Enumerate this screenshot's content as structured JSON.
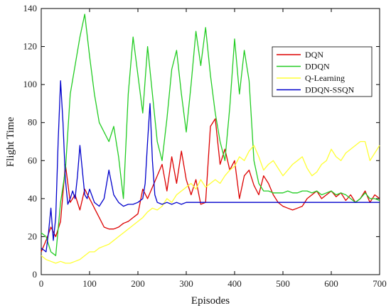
{
  "chart_data": {
    "type": "line",
    "title": "",
    "xlabel": "Episodes",
    "ylabel": "Flight Time",
    "xlim": [
      0,
      700
    ],
    "ylim": [
      0,
      140
    ],
    "xticks": [
      0,
      100,
      200,
      300,
      400,
      500,
      600,
      700
    ],
    "yticks": [
      0,
      20,
      40,
      60,
      80,
      100,
      120,
      140
    ],
    "grid": false,
    "legend_position": "top-right",
    "series": [
      {
        "name": "DQN",
        "color": "#dd0000",
        "x": [
          0,
          10,
          20,
          30,
          40,
          50,
          60,
          70,
          80,
          90,
          100,
          110,
          120,
          130,
          140,
          150,
          160,
          170,
          180,
          190,
          200,
          210,
          220,
          230,
          240,
          250,
          260,
          270,
          280,
          290,
          300,
          310,
          320,
          330,
          340,
          350,
          360,
          370,
          380,
          390,
          400,
          410,
          420,
          430,
          440,
          450,
          460,
          470,
          480,
          490,
          500,
          510,
          520,
          530,
          540,
          550,
          560,
          570,
          580,
          590,
          600,
          610,
          620,
          630,
          640,
          650,
          660,
          670,
          680,
          690,
          700
        ],
        "values": [
          12,
          18,
          25,
          20,
          28,
          58,
          38,
          42,
          34,
          45,
          40,
          35,
          30,
          25,
          24,
          24,
          25,
          27,
          28,
          30,
          32,
          45,
          40,
          46,
          52,
          58,
          44,
          62,
          48,
          65,
          50,
          42,
          50,
          37,
          38,
          78,
          82,
          58,
          66,
          55,
          60,
          40,
          52,
          55,
          47,
          42,
          52,
          48,
          42,
          38,
          36,
          35,
          34,
          35,
          36,
          40,
          42,
          44,
          40,
          42,
          44,
          41,
          43,
          39,
          42,
          38,
          40,
          44,
          38,
          42,
          40
        ]
      },
      {
        "name": "DDQN",
        "color": "#22cc22",
        "x": [
          0,
          10,
          20,
          30,
          40,
          50,
          60,
          70,
          80,
          90,
          100,
          110,
          120,
          130,
          140,
          150,
          160,
          170,
          180,
          190,
          200,
          210,
          220,
          230,
          240,
          250,
          260,
          270,
          280,
          290,
          300,
          310,
          320,
          330,
          340,
          350,
          360,
          370,
          380,
          390,
          400,
          410,
          420,
          430,
          440,
          450,
          460,
          470,
          480,
          490,
          500,
          510,
          520,
          530,
          540,
          550,
          560,
          570,
          580,
          590,
          600,
          610,
          620,
          630,
          640,
          650,
          660,
          670,
          680,
          690,
          700
        ],
        "values": [
          22,
          20,
          12,
          10,
          38,
          55,
          95,
          110,
          125,
          137,
          115,
          95,
          80,
          75,
          70,
          78,
          62,
          40,
          95,
          125,
          105,
          85,
          120,
          95,
          70,
          60,
          82,
          108,
          118,
          95,
          75,
          100,
          128,
          110,
          130,
          105,
          85,
          70,
          60,
          88,
          124,
          95,
          118,
          102,
          60,
          48,
          44,
          44,
          43,
          43,
          43,
          44,
          43,
          43,
          44,
          44,
          43,
          44,
          42,
          43,
          44,
          42,
          43,
          42,
          40,
          38,
          40,
          43,
          40,
          40,
          39
        ]
      },
      {
        "name": "Q-Learning",
        "color": "#ffff33",
        "x": [
          0,
          10,
          20,
          30,
          40,
          50,
          60,
          70,
          80,
          90,
          100,
          110,
          120,
          130,
          140,
          150,
          160,
          170,
          180,
          190,
          200,
          210,
          220,
          230,
          240,
          250,
          260,
          270,
          280,
          290,
          300,
          310,
          320,
          330,
          340,
          350,
          360,
          370,
          380,
          390,
          400,
          410,
          420,
          430,
          440,
          450,
          460,
          470,
          480,
          490,
          500,
          510,
          520,
          530,
          540,
          550,
          560,
          570,
          580,
          590,
          600,
          610,
          620,
          630,
          640,
          650,
          660,
          670,
          680,
          690,
          700
        ],
        "values": [
          10,
          8,
          7,
          6,
          7,
          6,
          6,
          7,
          8,
          10,
          12,
          12,
          14,
          15,
          16,
          18,
          20,
          22,
          24,
          26,
          28,
          30,
          33,
          35,
          34,
          36,
          40,
          38,
          42,
          44,
          46,
          48,
          45,
          50,
          46,
          48,
          50,
          48,
          52,
          55,
          57,
          62,
          60,
          65,
          68,
          62,
          55,
          58,
          60,
          56,
          52,
          55,
          58,
          60,
          62,
          56,
          52,
          54,
          58,
          60,
          66,
          62,
          60,
          64,
          66,
          68,
          70,
          70,
          60,
          64,
          68
        ]
      },
      {
        "name": "DDQN-SSQN",
        "color": "#0000cc",
        "x": [
          0,
          10,
          15,
          20,
          25,
          30,
          35,
          40,
          45,
          50,
          55,
          60,
          65,
          70,
          75,
          80,
          85,
          90,
          95,
          100,
          110,
          120,
          130,
          140,
          150,
          160,
          170,
          180,
          190,
          200,
          210,
          215,
          220,
          225,
          230,
          235,
          240,
          250,
          260,
          270,
          280,
          290,
          300,
          320,
          340,
          360,
          380,
          400,
          450,
          500,
          550,
          600,
          650,
          700
        ],
        "values": [
          14,
          12,
          22,
          35,
          18,
          30,
          70,
          102,
          80,
          50,
          37,
          40,
          44,
          40,
          52,
          68,
          55,
          42,
          40,
          45,
          38,
          36,
          40,
          55,
          42,
          38,
          36,
          37,
          37,
          38,
          40,
          48,
          70,
          90,
          60,
          42,
          38,
          37,
          38,
          37,
          38,
          37,
          38,
          38,
          38,
          38,
          38,
          38,
          38,
          38,
          38,
          38,
          38,
          38
        ]
      }
    ]
  }
}
